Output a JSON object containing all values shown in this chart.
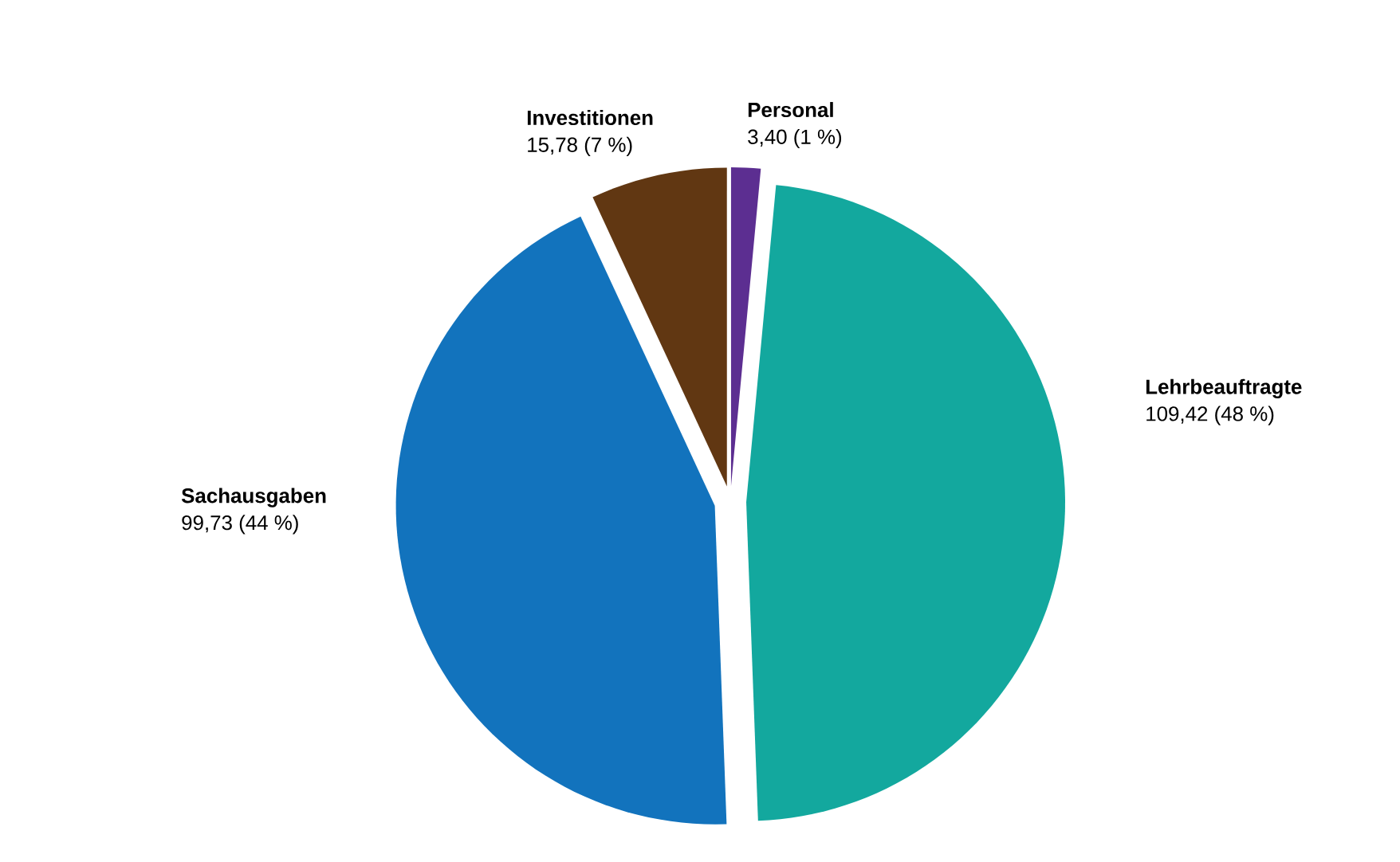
{
  "chart_data": {
    "type": "pie",
    "categories": [
      "Investitionen",
      "Sachausgaben",
      "Lehrbeauftragte",
      "Personal"
    ],
    "values": [
      15.78,
      99.73,
      109.42,
      3.4
    ],
    "value_labels": [
      "15,78 (7 %)",
      "99,73 (44 %)",
      "109,42 (48 %)",
      "3,40 (1 %)"
    ],
    "colors": [
      "#613712",
      "#1273bd",
      "#13a89e",
      "#5c2e91"
    ]
  }
}
